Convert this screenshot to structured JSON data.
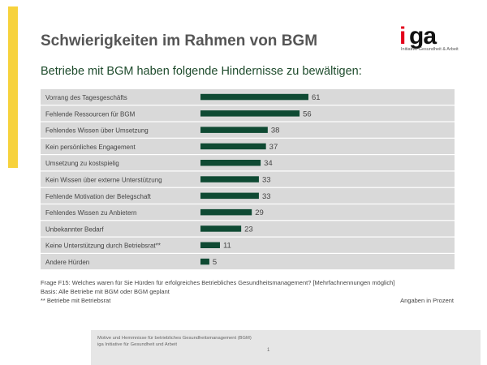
{
  "title": "Schwierigkeiten im Rahmen von BGM",
  "logo": {
    "mark_i": "i",
    "mark_ga": "ga",
    "tagline": "Initiative Gesundheit & Arbeit"
  },
  "subtitle": "Betriebe mit BGM haben folgende Hindernisse zu bewältigen:",
  "chart_data": {
    "type": "bar",
    "orientation": "horizontal",
    "categories": [
      "Vorrang des Tagesgeschäfts",
      "Fehlende Ressourcen für BGM",
      "Fehlendes Wissen über Umsetzung",
      "Kein persönliches Engagement",
      "Umsetzung zu kostspielig",
      "Kein Wissen über externe Unterstützung",
      "Fehlende Motivation der Belegschaft",
      "Fehlendes Wissen zu Anbietern",
      "Unbekannter Bedarf",
      "Keine Unterstützung durch Betriebsrat**",
      "Andere Hürden"
    ],
    "values": [
      61,
      56,
      38,
      37,
      34,
      33,
      33,
      29,
      23,
      11,
      5
    ],
    "xlim": [
      0,
      100
    ],
    "bar_color": "#0f4a33",
    "row_color": "#d9d9d9",
    "grid": false,
    "legend": "none"
  },
  "footnotes": {
    "question": "Frage F15: Welches waren für Sie Hürden für erfolgreiches Betriebliches Gesundheitsmanagement? [Mehrfachnennungen möglich]",
    "basis": "Basis: Alle Betriebe mit BGM oder BGM geplant",
    "note": "** Betriebe mit Betriebsrat",
    "unit": "Angaben in Prozent"
  },
  "footer": {
    "line1": "Motive und Hemmnisse für betriebliches Gesundheitsmanagement (BGM)",
    "line2": "iga Initiative für Gesundheit und Arbeit",
    "page": "1"
  },
  "colors": {
    "accent": "#f7d23c",
    "logo_red": "#e3001b",
    "heading_green": "#1e4b2c"
  }
}
